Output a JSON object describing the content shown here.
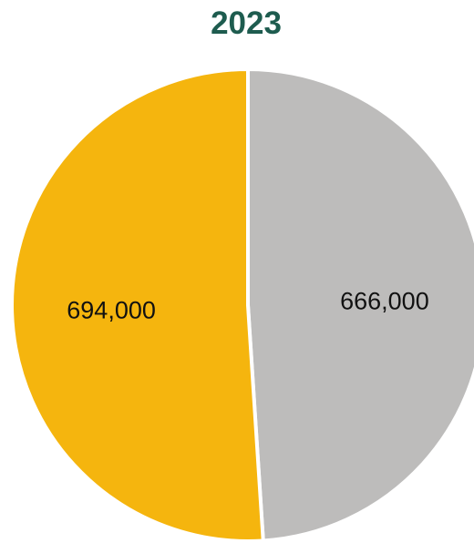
{
  "chart_data": {
    "type": "pie",
    "title": "2023",
    "categories": [
      "",
      ""
    ],
    "values": [
      666000,
      694000
    ],
    "labels": [
      "666,000",
      "694,000"
    ],
    "colors": [
      "#bdbcbb",
      "#f5b50e"
    ],
    "start": "12 o'clock",
    "direction": "clockwise",
    "legend": "none"
  }
}
